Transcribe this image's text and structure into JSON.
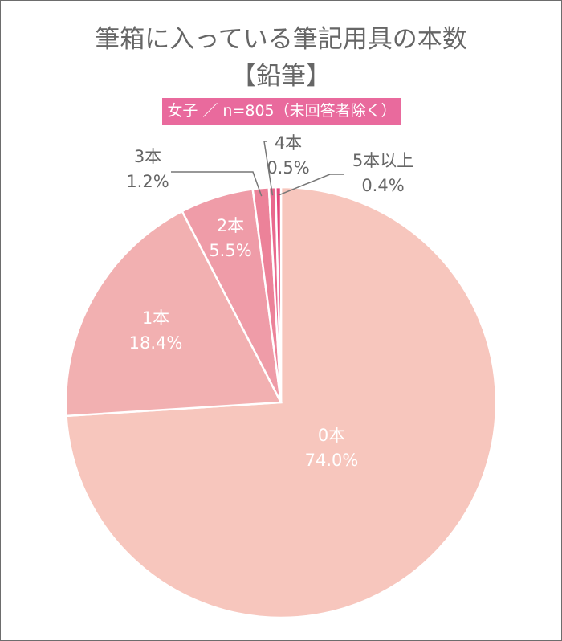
{
  "chart_data": {
    "type": "pie",
    "title": "筆箱に入っている筆記用具の本数",
    "subtitle": "【鉛筆】",
    "badge": "女子 ／ n=805（未回答者除く）",
    "slices": [
      {
        "label": "0本",
        "value": 74.0,
        "pct": "74.0%",
        "color": "#f7c6bd"
      },
      {
        "label": "1本",
        "value": 18.4,
        "pct": "18.4%",
        "color": "#f2b0b1"
      },
      {
        "label": "2本",
        "value": 5.5,
        "pct": "5.5%",
        "color": "#ef9ca8"
      },
      {
        "label": "3本",
        "value": 1.2,
        "pct": "1.2%",
        "color": "#ec8299"
      },
      {
        "label": "4本",
        "value": 0.5,
        "pct": "0.5%",
        "color": "#e9698e"
      },
      {
        "label": "5本以上",
        "value": 0.4,
        "pct": "0.4%",
        "color": "#e4477c"
      }
    ]
  }
}
